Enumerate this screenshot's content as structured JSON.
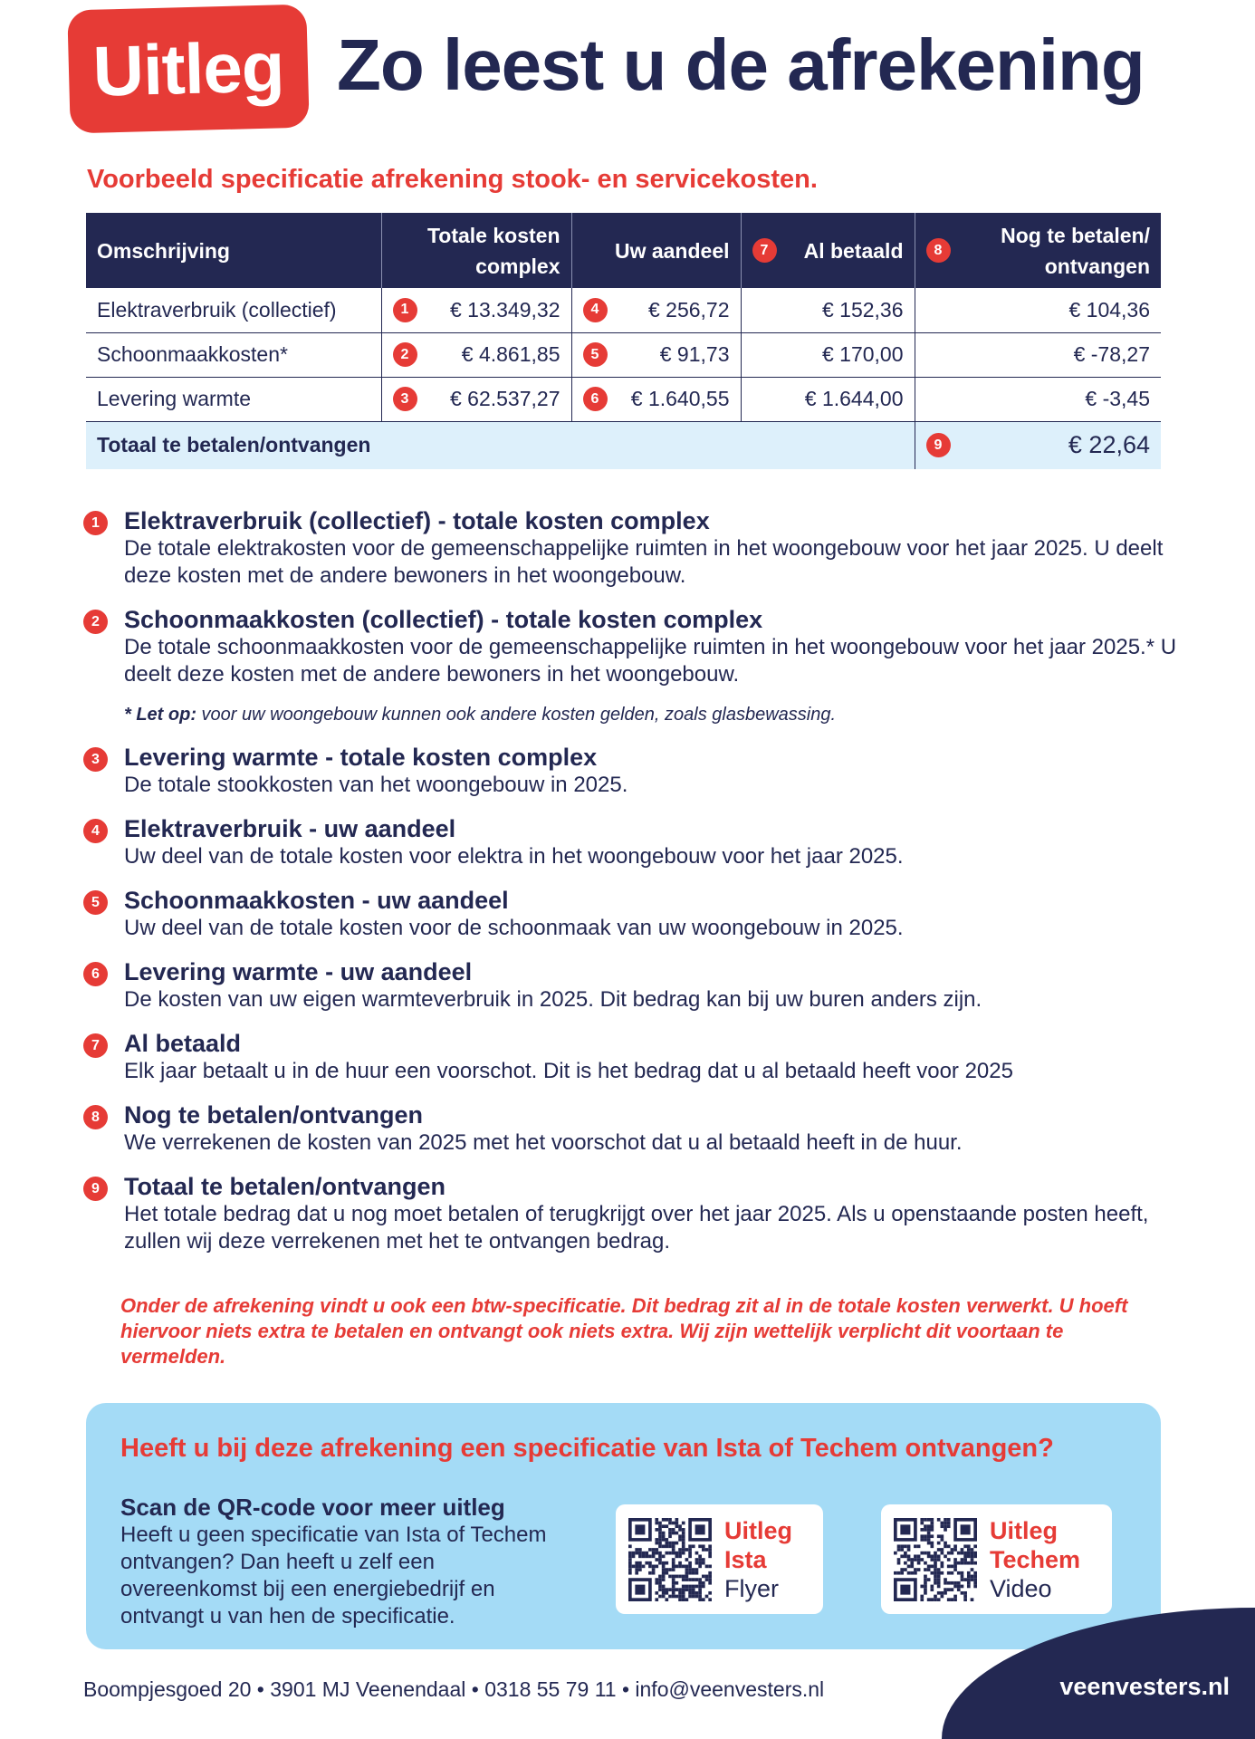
{
  "header": {
    "badge": "Uitleg",
    "title": "Zo leest u de afrekening"
  },
  "subtitle": "Voorbeeld specificatie afrekening stook- en servicekosten.",
  "table": {
    "headers": [
      "Omschrijving",
      "Totale kosten complex",
      "Uw aandeel",
      "Al betaald",
      "Nog te betalen/ ontvangen"
    ],
    "header_markers": {
      "al_betaald": "7",
      "nog": "8"
    },
    "rows": [
      {
        "desc": "Elektraverbruik (collectief)",
        "m1": "1",
        "total": "€ 13.349,32",
        "m2": "4",
        "share": "€ 256,72",
        "paid": "€ 152,36",
        "due": "€ 104,36"
      },
      {
        "desc": "Schoonmaakkosten*",
        "m1": "2",
        "total": "€ 4.861,85",
        "m2": "5",
        "share": "€ 91,73",
        "paid": "€ 170,00",
        "due": "€ -78,27"
      },
      {
        "desc": "Levering warmte",
        "m1": "3",
        "total": "€ 62.537,27",
        "m2": "6",
        "share": "€ 1.640,55",
        "paid": "€ 1.644,00",
        "due": "€ -3,45"
      }
    ],
    "total": {
      "label": "Totaal te betalen/ontvangen",
      "marker": "9",
      "value": "€ 22,64"
    }
  },
  "items": [
    {
      "n": "1",
      "title": "Elektraverbruik (collectief) - totale kosten complex",
      "text": "De totale elektrakosten voor de gemeenschappelijke ruimten in het woongebouw voor het jaar 2025. U deelt deze kosten met de andere bewoners in het woongebouw."
    },
    {
      "n": "2",
      "title": "Schoonmaakkosten (collectief) - totale kosten complex",
      "text": "De totale schoonmaakkosten voor de gemeenschappelijke ruimten in het woongebouw voor het jaar 2025.* U deelt deze kosten met de andere bewoners in het woongebouw."
    },
    {
      "n": "3",
      "title": "Levering warmte - totale kosten complex",
      "text": "De totale stookkosten van het woongebouw in 2025."
    },
    {
      "n": "4",
      "title": "Elektraverbruik - uw aandeel",
      "text": "Uw deel van de totale kosten voor elektra in het woongebouw voor het jaar 2025."
    },
    {
      "n": "5",
      "title": "Schoonmaakkosten - uw aandeel",
      "text": "Uw deel van de totale kosten voor de schoonmaak van uw woongebouw in 2025."
    },
    {
      "n": "6",
      "title": "Levering warmte - uw aandeel",
      "text": "De kosten van uw eigen warmteverbruik in 2025. Dit bedrag kan bij uw buren anders zijn."
    },
    {
      "n": "7",
      "title": "Al betaald",
      "text": "Elk jaar betaalt u in de huur een voorschot. Dit is het bedrag dat u al betaald heeft voor 2025"
    },
    {
      "n": "8",
      "title": "Nog te betalen/ontvangen",
      "text": "We verrekenen de kosten van 2025 met het voorschot dat u al betaald heeft in de huur."
    },
    {
      "n": "9",
      "title": "Totaal te betalen/ontvangen",
      "text": "Het totale bedrag dat u nog moet betalen of terugkrijgt over het jaar 2025. Als u openstaande posten heeft, zullen wij deze verrekenen met het te ontvangen bedrag."
    }
  ],
  "note": {
    "bold": "* Let op:",
    "text": " voor uw woongebouw kunnen ook andere kosten gelden, zoals glasbewassing."
  },
  "red_note": "Onder de afrekening vindt u ook een btw-specificatie. Dit bedrag zit al in de totale kosten verwerkt. U hoeft hiervoor niets extra te betalen en ontvangt ook niets extra. Wij zijn wettelijk verplicht dit voortaan te vermelden.",
  "info": {
    "heading": "Heeft u bij deze afrekening een specificatie van Ista of Techem ontvangen?",
    "scan_title": "Scan de QR-code voor meer uitleg",
    "scan_text": "Heeft u geen specificatie van Ista of Techem ontvangen? Dan heeft u zelf een overeenkomst bij een energiebedrijf en ontvangt u van hen de specificatie.",
    "qr": [
      {
        "l1": "Uitleg",
        "l2": "Ista",
        "l3": "Flyer"
      },
      {
        "l1": "Uitleg",
        "l2": "Techem",
        "l3": "Video"
      }
    ]
  },
  "footer": {
    "address": "Boompjesgoed 20 • 3901 MJ Veenendaal • 0318 55 79 11 • info@veenvesters.nl",
    "site": "veenvesters.nl"
  },
  "colors": {
    "navy": "#232852",
    "red": "#e63b36",
    "lightblue": "#a4dbf6"
  }
}
